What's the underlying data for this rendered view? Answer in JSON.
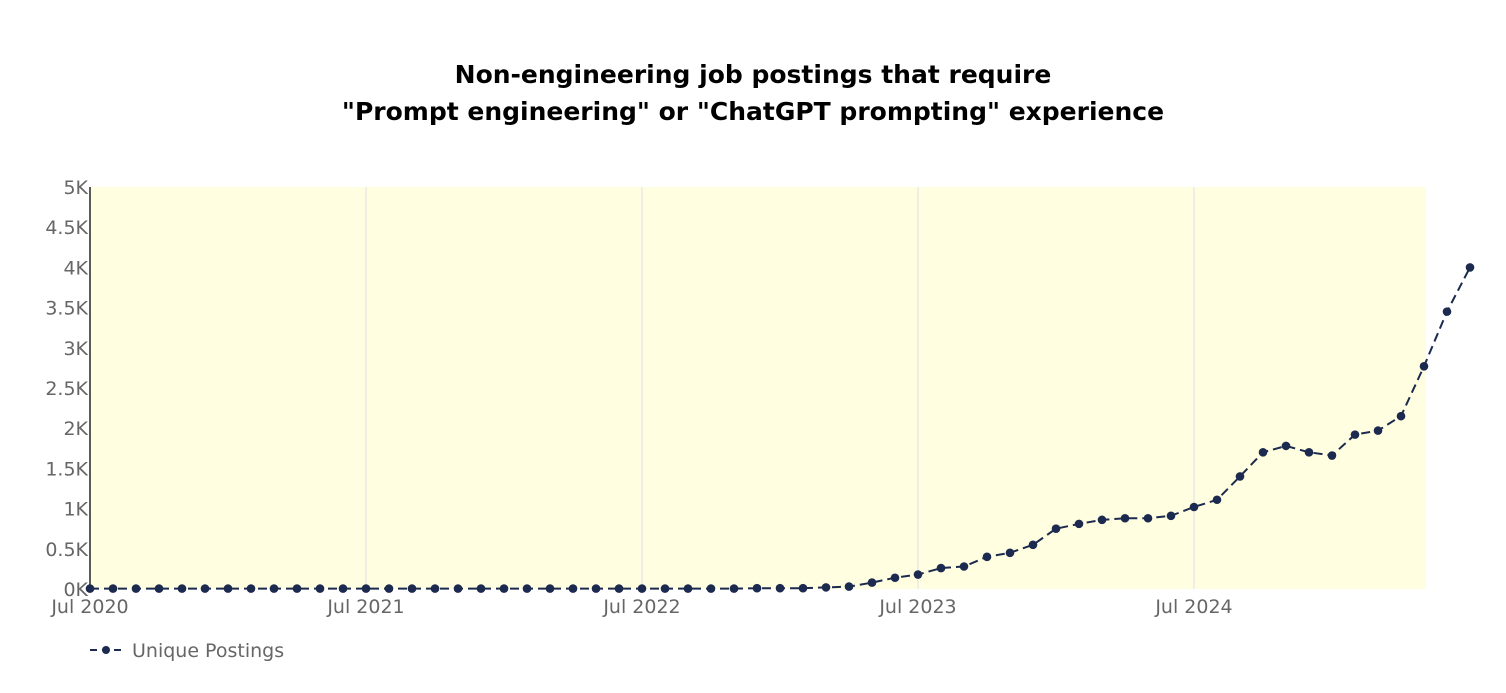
{
  "chart_data": {
    "type": "line",
    "title": [
      "Non-engineering job postings that require",
      "\"Prompt engineering\" or \"ChatGPT prompting\" experience"
    ],
    "xlabel": "",
    "ylabel": "",
    "x_start": "2020-07",
    "x_ticks": [
      {
        "date": "2020-07",
        "label": "Jul 2020"
      },
      {
        "date": "2021-07",
        "label": "Jul 2021"
      },
      {
        "date": "2022-07",
        "label": "Jul 2022"
      },
      {
        "date": "2023-07",
        "label": "Jul 2023"
      },
      {
        "date": "2024-07",
        "label": "Jul 2024"
      }
    ],
    "x_range": [
      "2020-07",
      "2025-06"
    ],
    "ylim": [
      0,
      5000
    ],
    "y_ticks": [
      {
        "value": 0,
        "label": "0K"
      },
      {
        "value": 500,
        "label": "0.5K"
      },
      {
        "value": 1000,
        "label": "1K"
      },
      {
        "value": 1500,
        "label": "1.5K"
      },
      {
        "value": 2000,
        "label": "2K"
      },
      {
        "value": 2500,
        "label": "2.5K"
      },
      {
        "value": 3000,
        "label": "3K"
      },
      {
        "value": 3500,
        "label": "3.5K"
      },
      {
        "value": 4000,
        "label": "4K"
      },
      {
        "value": 4500,
        "label": "4.5K"
      },
      {
        "value": 5000,
        "label": "5K"
      }
    ],
    "grid": "vertical",
    "plot_background": "#fffee0",
    "series": [
      {
        "name": "Unique Postings",
        "color": "#1b2a4e",
        "line_style": "dashed",
        "marker": "circle",
        "x": [
          "2020-07",
          "2020-08",
          "2020-09",
          "2020-10",
          "2020-11",
          "2020-12",
          "2021-01",
          "2021-02",
          "2021-03",
          "2021-04",
          "2021-05",
          "2021-06",
          "2021-07",
          "2021-08",
          "2021-09",
          "2021-10",
          "2021-11",
          "2021-12",
          "2022-01",
          "2022-02",
          "2022-03",
          "2022-04",
          "2022-05",
          "2022-06",
          "2022-07",
          "2022-08",
          "2022-09",
          "2022-10",
          "2022-11",
          "2022-12",
          "2023-01",
          "2023-02",
          "2023-03",
          "2023-04",
          "2023-05",
          "2023-06",
          "2023-07",
          "2023-08",
          "2023-09",
          "2023-10",
          "2023-11",
          "2023-12",
          "2024-01",
          "2024-02",
          "2024-03",
          "2024-04",
          "2024-05",
          "2024-06",
          "2024-07",
          "2024-08",
          "2024-09",
          "2024-10",
          "2024-11",
          "2024-12",
          "2025-01",
          "2025-02",
          "2025-03",
          "2025-04",
          "2025-05",
          "2025-06",
          "2025-07"
        ],
        "values": [
          5,
          5,
          5,
          5,
          5,
          5,
          5,
          5,
          5,
          5,
          5,
          5,
          5,
          5,
          5,
          5,
          5,
          5,
          5,
          5,
          5,
          5,
          5,
          5,
          5,
          5,
          5,
          5,
          5,
          10,
          10,
          10,
          20,
          30,
          80,
          140,
          180,
          260,
          280,
          400,
          450,
          550,
          750,
          810,
          860,
          880,
          880,
          910,
          1020,
          1110,
          1400,
          1700,
          1780,
          1700,
          1660,
          1920,
          1970,
          2150,
          2770,
          3450,
          4000
        ]
      }
    ],
    "legend": {
      "position": "bottom-left",
      "label": "Unique Postings",
      "symbol": "-•-"
    }
  }
}
